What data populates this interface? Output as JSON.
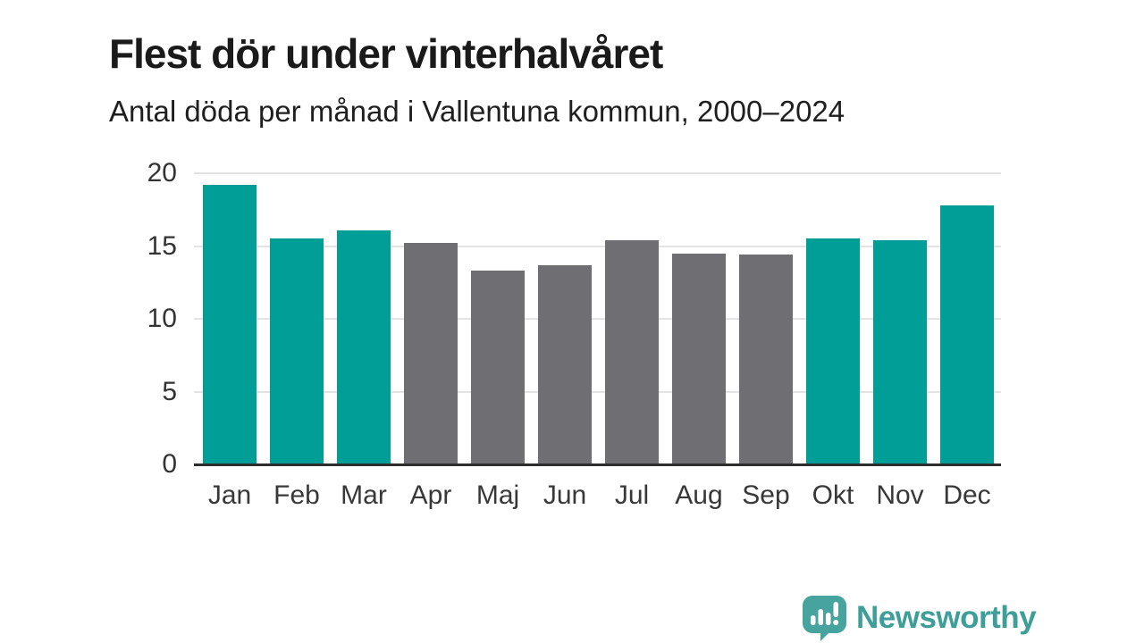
{
  "title": "Flest dör under vinterhalvåret",
  "subtitle": "Antal döda per månad i Vallentuna kommun, 2000–2024",
  "logo": {
    "name": "Newsworthy"
  },
  "colors": {
    "winter_bar": "#009E96",
    "summer_bar": "#6E6E73",
    "gridline": "#E3E3E3",
    "axis_line": "#2E2E2E",
    "title_text": "#1A1A1A",
    "tick_text": "#383838",
    "logo_teal": "#3E9E98",
    "logo_icon_teal": "#47A39D"
  },
  "chart_data": {
    "type": "bar",
    "title": "Flest dör under vinterhalvåret",
    "subtitle": "Antal döda per månad i Vallentuna kommun, 2000–2024",
    "categories": [
      "Jan",
      "Feb",
      "Mar",
      "Apr",
      "Maj",
      "Jun",
      "Jul",
      "Aug",
      "Sep",
      "Okt",
      "Nov",
      "Dec"
    ],
    "values": [
      19.2,
      15.5,
      16.1,
      15.2,
      13.3,
      13.7,
      15.4,
      14.5,
      14.4,
      15.5,
      15.4,
      17.8
    ],
    "highlighted_categories": [
      "Jan",
      "Feb",
      "Mar",
      "Okt",
      "Nov",
      "Dec"
    ],
    "xlabel": "",
    "ylabel": "",
    "ylim": [
      0,
      20
    ],
    "yticks": [
      0,
      5,
      10,
      15,
      20
    ],
    "grid": true,
    "legend": "none"
  }
}
